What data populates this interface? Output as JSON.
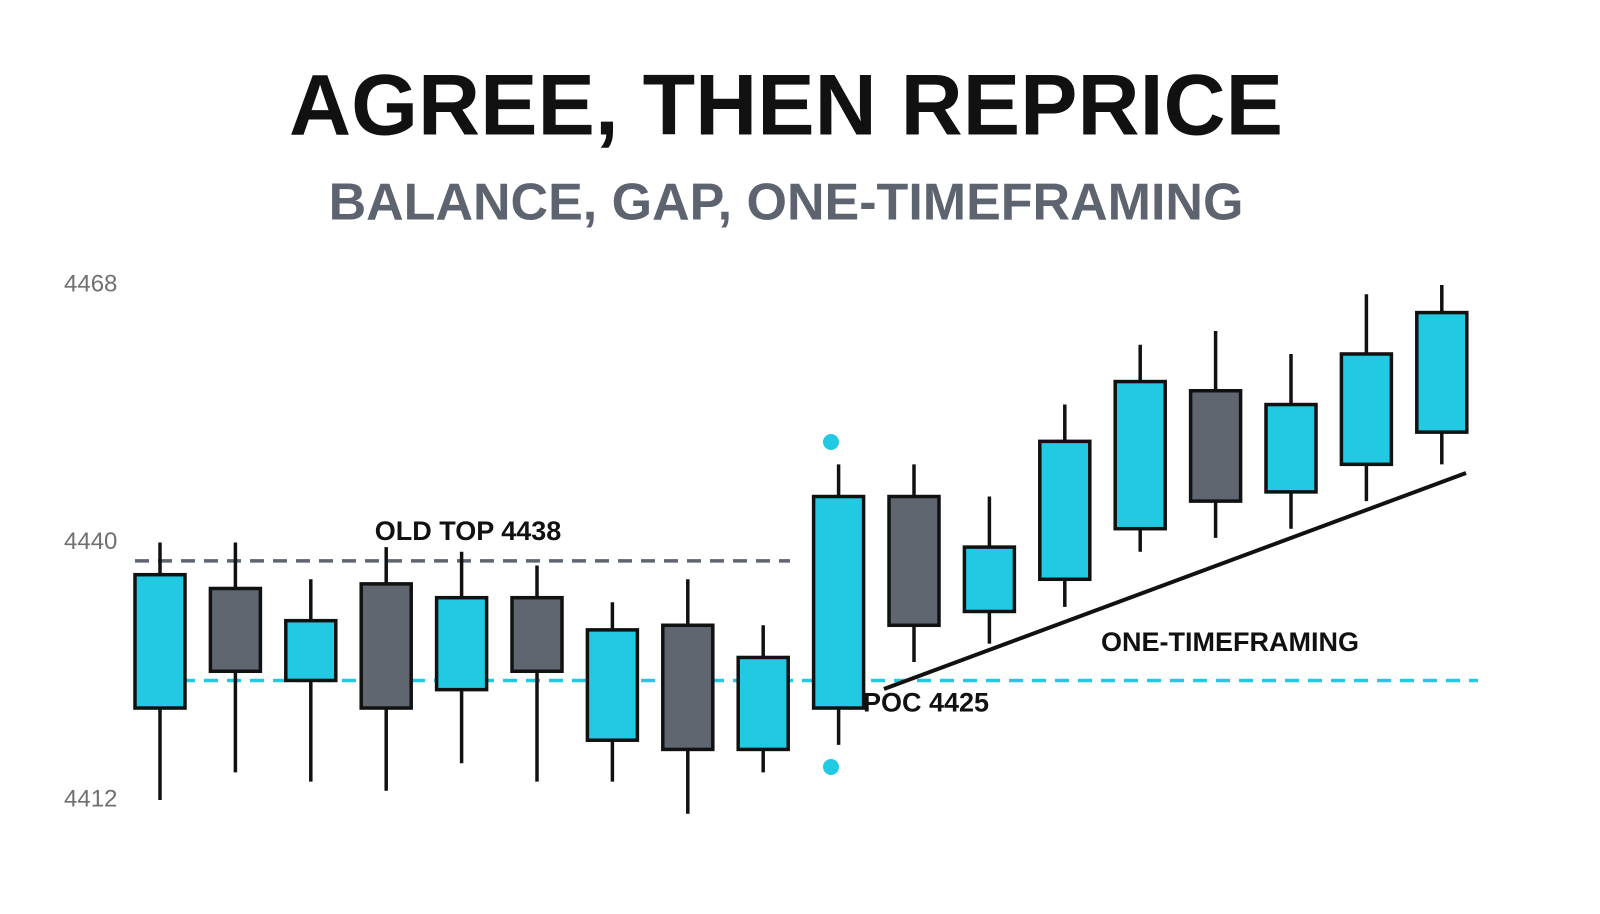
{
  "chart_data": {
    "type": "candlestick",
    "title": "AGREE, THEN REPRICE",
    "subtitle": "BALANCE, GAP, ONE-TIMEFRAMING",
    "annotation": "ONE-TIMEFRAMING",
    "ylim": [
      4410,
      4470
    ],
    "yticks": [
      4412,
      4440,
      4468
    ],
    "up_color": "#22c9e2",
    "down_color": "#5f6670",
    "levels": [
      {
        "label": "OLD TOP 4438",
        "value": 4438,
        "color": "#5f6670"
      },
      {
        "label": "POC 4425",
        "value": 4425,
        "color": "#22c9e2"
      }
    ],
    "open": [
      4422,
      4435,
      4425,
      4435.5,
      4424,
      4434,
      4418.5,
      4431,
      4417.5,
      4422,
      4445,
      4432.5,
      4436,
      4441.5,
      4456.5,
      4445.5,
      4448.5,
      4452
    ],
    "high": [
      4440,
      4440,
      4436,
      4439.5,
      4439,
      4437.5,
      4433.5,
      4436,
      4431,
      4448.5,
      4448.5,
      4445,
      4455,
      4461.5,
      4463,
      4460.5,
      4467,
      4468
    ],
    "low": [
      4412,
      4415,
      4414,
      4413,
      4416,
      4414,
      4414,
      4410.5,
      4415,
      4418,
      4427,
      4429,
      4433,
      4439,
      4440.5,
      4441.5,
      4444.5,
      4448.5
    ],
    "close": [
      4436.5,
      4426,
      4431.5,
      4422,
      4434,
      4426,
      4430.5,
      4417.5,
      4427.5,
      4445,
      4431,
      4439.5,
      4451,
      4457.5,
      4444.5,
      4455,
      4460.5,
      4465
    ]
  }
}
